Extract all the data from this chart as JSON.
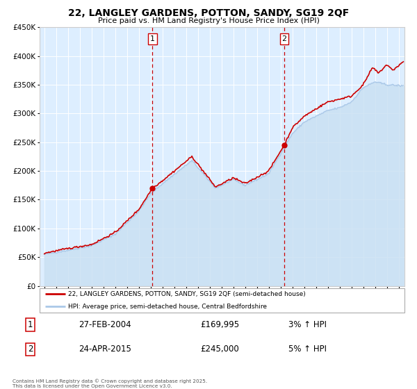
{
  "title": "22, LANGLEY GARDENS, POTTON, SANDY, SG19 2QF",
  "subtitle": "Price paid vs. HM Land Registry's House Price Index (HPI)",
  "bg_color": "#ffffff",
  "plot_bg_color": "#ddeeff",
  "grid_color": "#ffffff",
  "hpi_color": "#aac8e8",
  "hpi_fill_color": "#c8dff2",
  "price_color": "#cc0000",
  "purchase1_date": 2004.15,
  "purchase1_price": 169995,
  "purchase2_date": 2015.31,
  "purchase2_price": 245000,
  "legend1": "22, LANGLEY GARDENS, POTTON, SANDY, SG19 2QF (semi-detached house)",
  "legend2": "HPI: Average price, semi-detached house, Central Bedfordshire",
  "table_row1": [
    "1",
    "27-FEB-2004",
    "£169,995",
    "3% ↑ HPI"
  ],
  "table_row2": [
    "2",
    "24-APR-2015",
    "£245,000",
    "5% ↑ HPI"
  ],
  "footer": "Contains HM Land Registry data © Crown copyright and database right 2025.\nThis data is licensed under the Open Government Licence v3.0.",
  "ylim": [
    0,
    450000
  ],
  "xlim_start": 1994.6,
  "xlim_end": 2025.5,
  "yticks": [
    0,
    50000,
    100000,
    150000,
    200000,
    250000,
    300000,
    350000,
    400000,
    450000
  ],
  "ytick_labels": [
    "£0",
    "£50K",
    "£100K",
    "£150K",
    "£200K",
    "£250K",
    "£300K",
    "£350K",
    "£400K",
    "£450K"
  ],
  "xticks": [
    1995,
    1996,
    1997,
    1998,
    1999,
    2000,
    2001,
    2002,
    2003,
    2004,
    2005,
    2006,
    2007,
    2008,
    2009,
    2010,
    2011,
    2012,
    2013,
    2014,
    2015,
    2016,
    2017,
    2018,
    2019,
    2020,
    2021,
    2022,
    2023,
    2024,
    2025
  ]
}
